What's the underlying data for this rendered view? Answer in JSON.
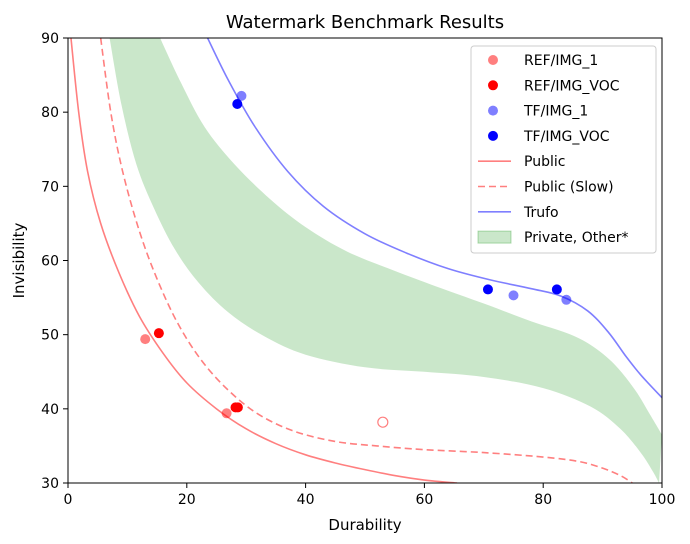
{
  "chart_data": {
    "type": "scatter",
    "title": "Watermark Benchmark Results",
    "xlabel": "Durability",
    "ylabel": "Invisibility",
    "xlim": [
      0,
      100
    ],
    "ylim": [
      30,
      90
    ],
    "xticks": [
      0,
      20,
      40,
      60,
      80,
      100
    ],
    "yticks": [
      30,
      40,
      50,
      60,
      70,
      80,
      90
    ],
    "grid": false,
    "legend_position": "top-right",
    "scatter_series": [
      {
        "name": "REF/IMG_1",
        "color": "#ff0000",
        "alpha": 0.5,
        "points": [
          [
            13.0,
            49.4
          ],
          [
            26.7,
            39.4
          ]
        ]
      },
      {
        "name": "REF/IMG_VOC",
        "color": "#ff0000",
        "alpha": 1.0,
        "points": [
          [
            15.3,
            50.2
          ],
          [
            28.2,
            40.2
          ],
          [
            28.6,
            40.2
          ]
        ]
      },
      {
        "name": "TF/IMG_1",
        "color": "#0000ff",
        "alpha": 0.5,
        "points": [
          [
            29.2,
            82.2
          ],
          [
            75.0,
            55.3
          ],
          [
            83.9,
            54.7
          ]
        ]
      },
      {
        "name": "TF/IMG_VOC",
        "color": "#0000ff",
        "alpha": 1.0,
        "points": [
          [
            28.5,
            81.1
          ],
          [
            70.7,
            56.1
          ],
          [
            82.3,
            56.1
          ]
        ]
      }
    ],
    "open_markers": [
      {
        "color": "#ff0000",
        "alpha": 0.5,
        "points": [
          [
            53.0,
            38.2
          ]
        ]
      }
    ],
    "line_series": [
      {
        "name": "Public",
        "color": "#ff0000",
        "alpha": 0.5,
        "dash": "solid",
        "points": [
          [
            0.5,
            90
          ],
          [
            1.8,
            80
          ],
          [
            3.3,
            72
          ],
          [
            5.5,
            65
          ],
          [
            8.5,
            58.5
          ],
          [
            12,
            52.5
          ],
          [
            16,
            47.5
          ],
          [
            20,
            43.5
          ],
          [
            25,
            40
          ],
          [
            30,
            37.3
          ],
          [
            35,
            35.3
          ],
          [
            40,
            33.8
          ],
          [
            45,
            32.7
          ],
          [
            50,
            31.8
          ],
          [
            55,
            31
          ],
          [
            60,
            30.4
          ],
          [
            65.5,
            30
          ]
        ]
      },
      {
        "name": "Public (Slow)",
        "color": "#ff0000",
        "alpha": 0.5,
        "dash": "dashed",
        "points": [
          [
            5.5,
            90
          ],
          [
            7.2,
            80
          ],
          [
            9.2,
            72
          ],
          [
            12,
            64
          ],
          [
            15,
            57.5
          ],
          [
            18.5,
            51.5
          ],
          [
            22.5,
            46.5
          ],
          [
            27,
            42.5
          ],
          [
            32,
            39.3
          ],
          [
            38,
            37
          ],
          [
            45,
            35.6
          ],
          [
            52,
            35
          ],
          [
            60,
            34.5
          ],
          [
            70,
            34.1
          ],
          [
            80,
            33.5
          ],
          [
            86,
            32.9
          ],
          [
            90,
            32
          ],
          [
            93,
            31
          ],
          [
            95,
            30
          ]
        ]
      },
      {
        "name": "Trufo",
        "color": "#0000ff",
        "alpha": 0.5,
        "dash": "solid",
        "points": [
          [
            23.5,
            90
          ],
          [
            27,
            84.3
          ],
          [
            31.5,
            78
          ],
          [
            37,
            72
          ],
          [
            43,
            67.3
          ],
          [
            50,
            63.6
          ],
          [
            57,
            61
          ],
          [
            64,
            58.9
          ],
          [
            71,
            57.4
          ],
          [
            78,
            56.2
          ],
          [
            83,
            55.2
          ],
          [
            87.5,
            53.2
          ],
          [
            91,
            50.3
          ],
          [
            94,
            47
          ],
          [
            96.5,
            44.5
          ],
          [
            100,
            41.5
          ]
        ]
      }
    ],
    "band": {
      "name": "Private, Other*",
      "color": "#2ca02c",
      "alpha": 0.25,
      "upper": [
        [
          15.5,
          90
        ],
        [
          19,
          84
        ],
        [
          23,
          78
        ],
        [
          28,
          73
        ],
        [
          34,
          68.3
        ],
        [
          40,
          64.5
        ],
        [
          47,
          61.2
        ],
        [
          55,
          58.6
        ],
        [
          62,
          56.5
        ],
        [
          70,
          54.2
        ],
        [
          78,
          51.8
        ],
        [
          84,
          50.2
        ],
        [
          88,
          48.6
        ],
        [
          92,
          46
        ],
        [
          95.5,
          42.5
        ],
        [
          98,
          39.2
        ],
        [
          100,
          36.5
        ]
      ],
      "lower": [
        [
          7,
          90
        ],
        [
          9,
          81
        ],
        [
          11.5,
          73
        ],
        [
          14.5,
          67
        ],
        [
          18,
          61.5
        ],
        [
          22,
          57
        ],
        [
          27,
          53
        ],
        [
          33,
          49.8
        ],
        [
          40,
          47.3
        ],
        [
          50,
          45.6
        ],
        [
          60,
          45
        ],
        [
          70,
          44.3
        ],
        [
          80,
          42.8
        ],
        [
          88,
          40.3
        ],
        [
          93,
          37.3
        ],
        [
          96.5,
          34
        ],
        [
          98.5,
          31.5
        ],
        [
          99.5,
          30
        ]
      ]
    }
  }
}
